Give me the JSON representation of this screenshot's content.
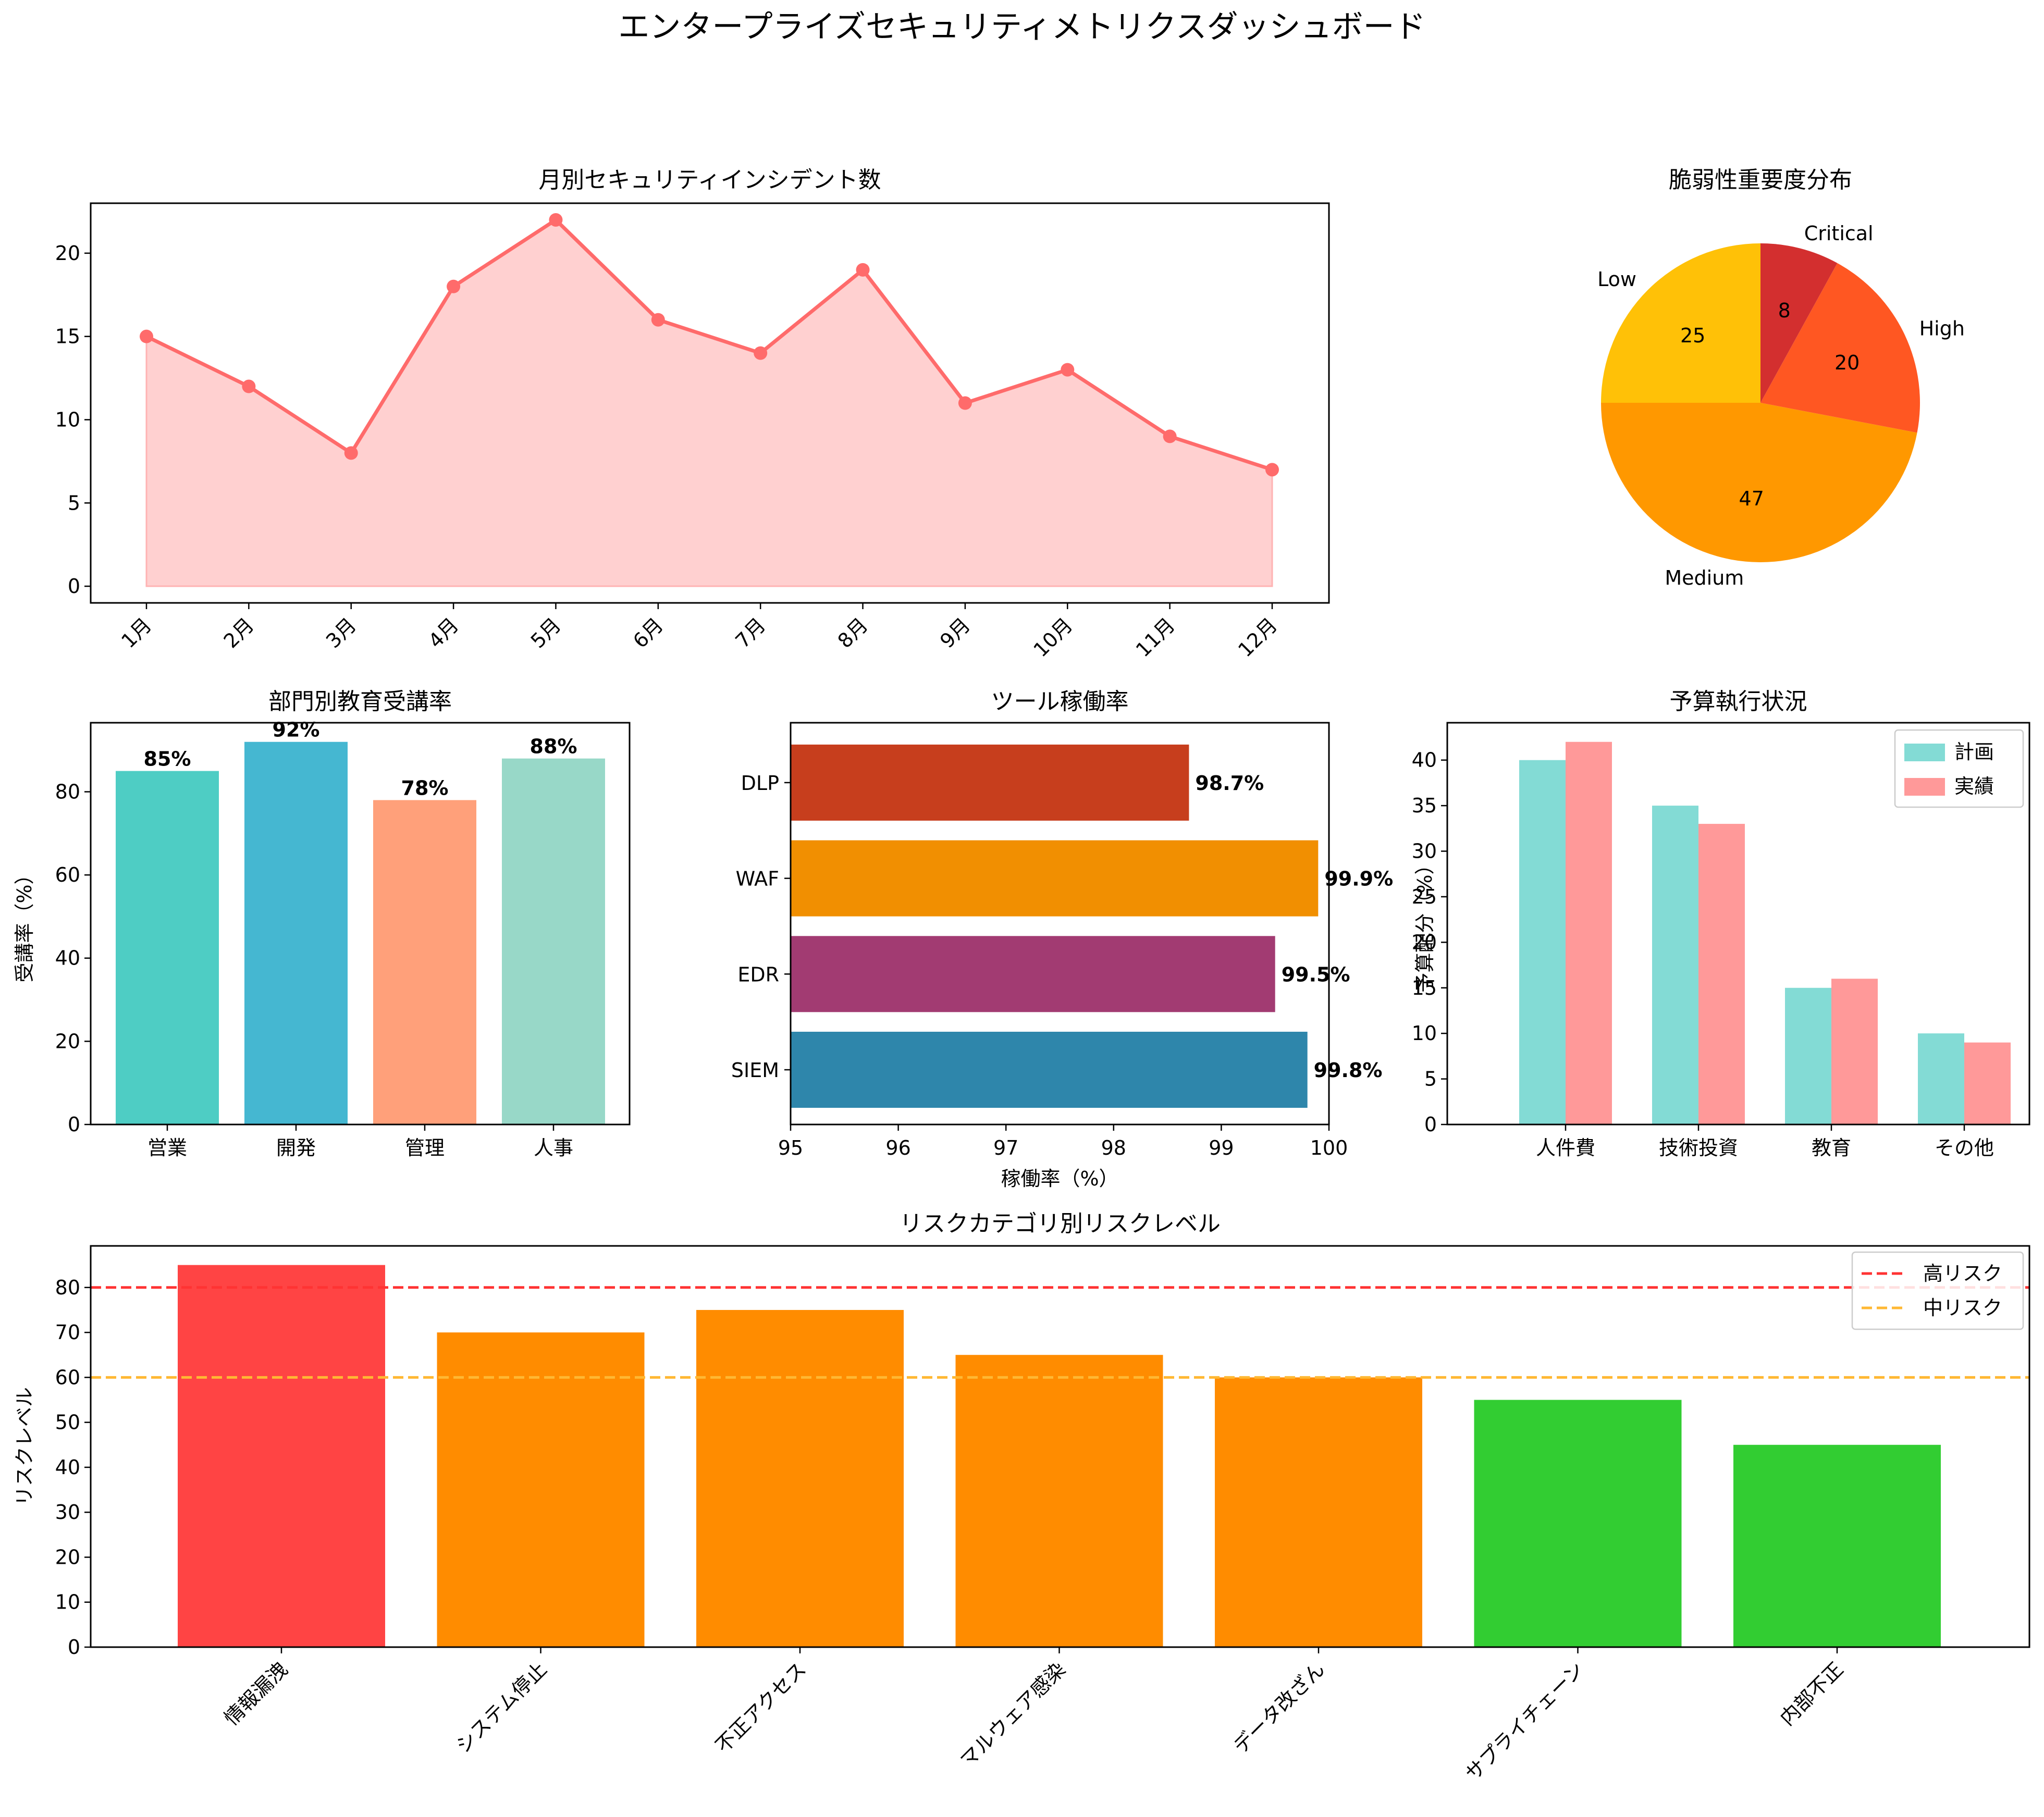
{
  "page": {
    "title": "エンタープライズセキュリティメトリクスダッシュボード"
  },
  "chart_data": [
    {
      "id": "incidents",
      "type": "area",
      "title": "月別セキュリティインシデント数",
      "xlabel": "",
      "ylabel": "",
      "categories": [
        "1月",
        "2月",
        "3月",
        "4月",
        "5月",
        "6月",
        "7月",
        "8月",
        "9月",
        "10月",
        "11月",
        "12月"
      ],
      "values": [
        15,
        12,
        8,
        18,
        22,
        16,
        14,
        19,
        11,
        13,
        9,
        7
      ],
      "ylim": [
        -1,
        23
      ],
      "yticks": [
        0,
        5,
        10,
        15,
        20
      ],
      "colors": {
        "line": "#ff6b6b",
        "fill": "#ffd0d0"
      }
    },
    {
      "id": "vulnerability",
      "type": "pie",
      "title": "脆弱性重要度分布",
      "labels": [
        "Low",
        "Medium",
        "High",
        "Critical"
      ],
      "values": [
        25,
        47,
        20,
        8
      ],
      "colors": [
        "#ffc107",
        "#ff9800",
        "#ff5722",
        "#d32f2f"
      ]
    },
    {
      "id": "training",
      "type": "bar",
      "title": "部門別教育受講率",
      "xlabel": "",
      "ylabel": "受講率（%）",
      "categories": [
        "営業",
        "開発",
        "管理",
        "人事"
      ],
      "values": [
        85,
        92,
        78,
        88
      ],
      "value_labels": [
        "85%",
        "92%",
        "78%",
        "88%"
      ],
      "ylim": [
        0,
        96.6
      ],
      "yticks": [
        0,
        20,
        40,
        60,
        80
      ],
      "colors": [
        "#4ecdc4",
        "#45b7d1",
        "#ffa07a",
        "#98d8c8"
      ]
    },
    {
      "id": "tools",
      "type": "bar",
      "orientation": "horizontal",
      "title": "ツール稼働率",
      "xlabel": "稼働率（%）",
      "ylabel": "",
      "categories": [
        "SIEM",
        "EDR",
        "WAF",
        "DLP"
      ],
      "values": [
        99.8,
        99.5,
        99.9,
        98.7
      ],
      "value_labels": [
        "99.8%",
        "99.5%",
        "99.9%",
        "98.7%"
      ],
      "xlim": [
        95,
        100
      ],
      "xticks": [
        95,
        96,
        97,
        98,
        99,
        100
      ],
      "colors": [
        "#2e86ab",
        "#a23b72",
        "#f18f01",
        "#c73e1d"
      ]
    },
    {
      "id": "budget",
      "type": "bar",
      "title": "予算執行状況",
      "xlabel": "",
      "ylabel": "予算配分（%）",
      "categories": [
        "人件費",
        "技術投資",
        "教育",
        "その他"
      ],
      "series": [
        {
          "name": "計画",
          "values": [
            40,
            35,
            15,
            10
          ],
          "color": "#83dbd5"
        },
        {
          "name": "実績",
          "values": [
            42,
            33,
            16,
            9
          ],
          "color": "#ff9999"
        }
      ],
      "ylim": [
        0,
        44.1
      ],
      "yticks": [
        0,
        5,
        10,
        15,
        20,
        25,
        30,
        35,
        40
      ],
      "legend": "top-right"
    },
    {
      "id": "risk",
      "type": "bar",
      "title": "リスクカテゴリ別リスクレベル",
      "xlabel": "",
      "ylabel": "リスクレベル",
      "categories": [
        "情報漏洩",
        "システム停止",
        "不正アクセス",
        "マルウェア感染",
        "データ改ざん",
        "サプライチェーン",
        "内部不正"
      ],
      "values": [
        85,
        70,
        75,
        65,
        60,
        55,
        45
      ],
      "colors": [
        "#ff4444",
        "#ff8c00",
        "#ff8c00",
        "#ff8c00",
        "#ff8c00",
        "#32cd32",
        "#32cd32"
      ],
      "ylim": [
        0,
        89.25
      ],
      "yticks": [
        0,
        10,
        20,
        30,
        40,
        50,
        60,
        70,
        80
      ],
      "thresholds": [
        {
          "name": "高リスク",
          "value": 80,
          "color": "#ff3333"
        },
        {
          "name": "中リスク",
          "value": 60,
          "color": "#ffb833"
        }
      ],
      "legend": "top-right"
    }
  ]
}
